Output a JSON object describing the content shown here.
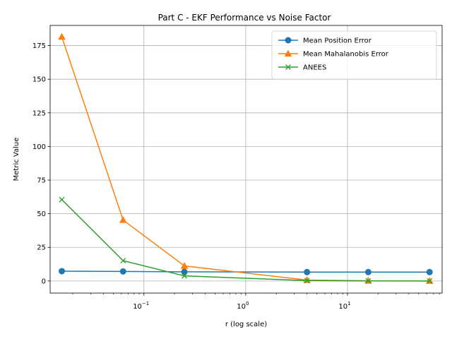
{
  "chart_data": {
    "type": "line",
    "title": "Part C - EKF Performance vs Noise Factor",
    "xlabel": "r (log scale)",
    "ylabel": "Metric Value",
    "xscale": "log",
    "x": [
      0.015625,
      0.0625,
      0.25,
      4,
      16,
      64
    ],
    "xlim": [
      0.012,
      85
    ],
    "ylim": [
      -9,
      190
    ],
    "xticks": [
      {
        "value": 0.1,
        "base": "10",
        "exp": "−1"
      },
      {
        "value": 1,
        "base": "10",
        "exp": "0"
      },
      {
        "value": 10,
        "base": "10",
        "exp": "1"
      }
    ],
    "yticks": [
      0,
      25,
      50,
      75,
      100,
      125,
      150,
      175
    ],
    "grid": true,
    "legend_position": "top-right",
    "series": [
      {
        "name": "Mean Position Error",
        "color": "#1f77b4",
        "marker": "circle",
        "values": [
          7.3,
          7.1,
          6.8,
          6.6,
          6.6,
          6.6
        ]
      },
      {
        "name": "Mean Mahalanobis Error",
        "color": "#ff7f0e",
        "marker": "triangle",
        "values": [
          181.5,
          45.3,
          11.2,
          0.7,
          0.15,
          0.05
        ]
      },
      {
        "name": "ANEES",
        "color": "#2ca02c",
        "marker": "x",
        "values": [
          60.5,
          15.1,
          3.8,
          0.3,
          0.05,
          0.02
        ]
      }
    ]
  }
}
